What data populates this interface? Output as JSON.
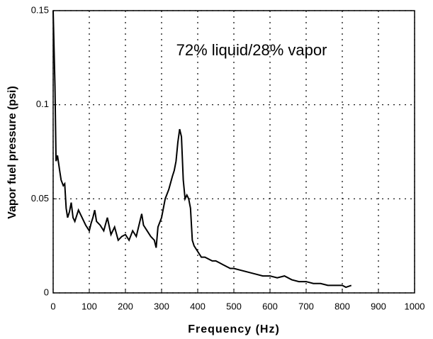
{
  "chart_data": {
    "type": "line",
    "annotation": "72% liquid/28% vapor",
    "xlabel": "Frequency (Hz)",
    "ylabel": "Vapor fuel pressure (psi)",
    "x": [
      0,
      5,
      8,
      12,
      18,
      22,
      28,
      32,
      36,
      40,
      45,
      50,
      55,
      60,
      70,
      80,
      90,
      100,
      105,
      110,
      115,
      120,
      130,
      140,
      150,
      160,
      170,
      180,
      190,
      200,
      210,
      220,
      230,
      240,
      245,
      250,
      260,
      270,
      280,
      285,
      290,
      300,
      310,
      320,
      330,
      335,
      340,
      345,
      350,
      355,
      360,
      365,
      370,
      375,
      380,
      385,
      390,
      400,
      410,
      420,
      430,
      440,
      450,
      460,
      470,
      480,
      490,
      500,
      520,
      540,
      560,
      580,
      600,
      620,
      640,
      660,
      680,
      700,
      720,
      740,
      760,
      780,
      800,
      810,
      825
    ],
    "series": [
      {
        "name": "Vapor fuel pressure",
        "color": "#000000",
        "values": [
          0.15,
          0.11,
          0.07,
          0.073,
          0.065,
          0.06,
          0.057,
          0.058,
          0.045,
          0.04,
          0.043,
          0.048,
          0.04,
          0.038,
          0.044,
          0.04,
          0.036,
          0.033,
          0.037,
          0.04,
          0.044,
          0.038,
          0.036,
          0.033,
          0.04,
          0.031,
          0.035,
          0.028,
          0.03,
          0.031,
          0.028,
          0.033,
          0.03,
          0.038,
          0.042,
          0.036,
          0.033,
          0.03,
          0.028,
          0.024,
          0.035,
          0.04,
          0.05,
          0.055,
          0.062,
          0.065,
          0.07,
          0.08,
          0.087,
          0.083,
          0.06,
          0.05,
          0.052,
          0.05,
          0.045,
          0.028,
          0.025,
          0.022,
          0.019,
          0.019,
          0.018,
          0.017,
          0.017,
          0.016,
          0.015,
          0.014,
          0.013,
          0.013,
          0.012,
          0.011,
          0.01,
          0.009,
          0.009,
          0.008,
          0.009,
          0.007,
          0.006,
          0.006,
          0.005,
          0.005,
          0.004,
          0.004,
          0.004,
          0.003,
          0.004
        ]
      }
    ],
    "xlim": [
      0,
      1000
    ],
    "xticks": [
      0,
      100,
      200,
      300,
      400,
      500,
      600,
      700,
      800,
      900,
      1000
    ],
    "ylim": [
      0,
      0.15
    ],
    "yticks": [
      0,
      0.05,
      0.1,
      0.15
    ],
    "grid": true
  }
}
